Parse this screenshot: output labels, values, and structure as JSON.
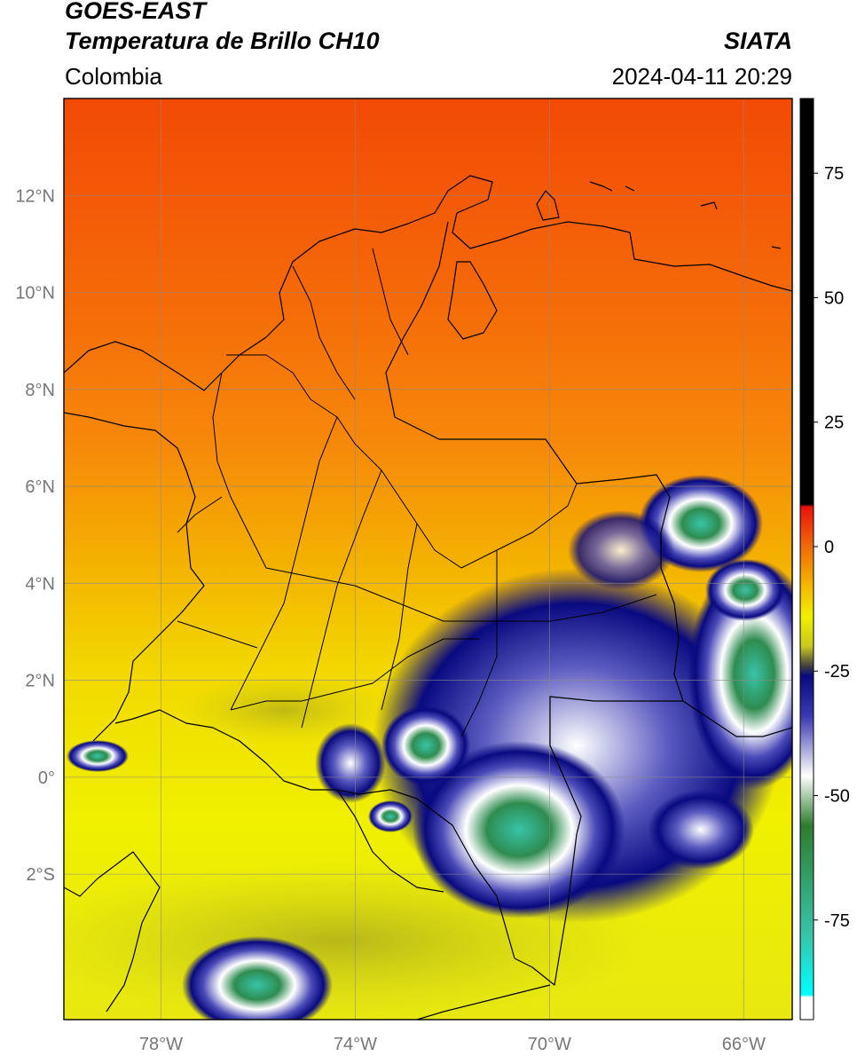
{
  "header": {
    "title_line1": "GOES-EAST",
    "title_line2": "Temperatura de Brillo CH10",
    "region": "Colombia",
    "agency": "SIATA",
    "timestamp": "2024-04-11 20:29"
  },
  "map": {
    "lon_range": [
      -80,
      -65
    ],
    "lat_range": [
      -5,
      14
    ],
    "lon_ticks": [
      {
        "value": -78,
        "label": "78°W"
      },
      {
        "value": -74,
        "label": "74°W"
      },
      {
        "value": -70,
        "label": "70°W"
      },
      {
        "value": -66,
        "label": "66°W"
      }
    ],
    "lat_ticks": [
      {
        "value": 12,
        "label": "12°N"
      },
      {
        "value": 10,
        "label": "10°N"
      },
      {
        "value": 8,
        "label": "8°N"
      },
      {
        "value": 6,
        "label": "6°N"
      },
      {
        "value": 4,
        "label": "4°N"
      },
      {
        "value": 2,
        "label": "2°N"
      },
      {
        "value": 0,
        "label": "0°"
      },
      {
        "value": -2,
        "label": "2°S"
      }
    ],
    "gridlines": true
  },
  "colorbar": {
    "unit_range": [
      -95,
      90
    ],
    "ticks": [
      {
        "value": 75,
        "label": "75"
      },
      {
        "value": 50,
        "label": "50"
      },
      {
        "value": 25,
        "label": "25"
      },
      {
        "value": 0,
        "label": "0"
      },
      {
        "value": -25,
        "label": "-25"
      },
      {
        "value": -50,
        "label": "-50"
      },
      {
        "value": -75,
        "label": "-75"
      }
    ],
    "stops": [
      {
        "value": 90,
        "color": "#000000"
      },
      {
        "value": 8.5,
        "color": "#000000"
      },
      {
        "value": 8,
        "color": "#e8120a"
      },
      {
        "value": 0,
        "color": "#f06a0a"
      },
      {
        "value": -8,
        "color": "#f4b800"
      },
      {
        "value": -14,
        "color": "#f0f000"
      },
      {
        "value": -20,
        "color": "#c8c820"
      },
      {
        "value": -24,
        "color": "#404040"
      },
      {
        "value": -26,
        "color": "#0a0a80"
      },
      {
        "value": -34,
        "color": "#3838b0"
      },
      {
        "value": -46,
        "color": "#ffffff"
      },
      {
        "value": -56,
        "color": "#2e7d2e"
      },
      {
        "value": -78,
        "color": "#38c4a8"
      },
      {
        "value": -90,
        "color": "#00ffff"
      },
      {
        "value": -90.5,
        "color": "#ffffff"
      },
      {
        "value": -95,
        "color": "#ffffff"
      }
    ]
  }
}
